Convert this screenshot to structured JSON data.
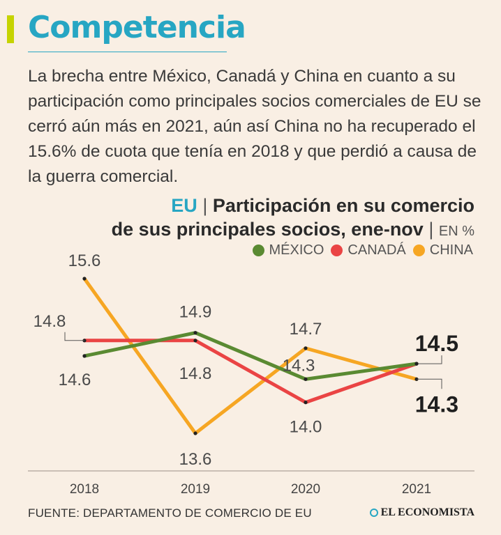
{
  "header": {
    "title": "Competencia",
    "intro": "La brecha entre México, Canadá y China en cuanto a su participación como principales socios comerciales de EU se cerró aún más en 2021, aún así China no ha recuperado el 15.6% de cuota que tenía en 2018 y que perdió a causa de la guerra comercial."
  },
  "chart_title": {
    "country": "EU",
    "separator": "|",
    "line1": "Participación en su comercio",
    "line2": "de sus principales socios, ene-nov",
    "unit": "EN %"
  },
  "colors": {
    "background": "#f9efe4",
    "accent": "#27a6c3",
    "accent_bar": "#c6d300",
    "axis": "#9a8f86"
  },
  "chart_data": {
    "type": "line",
    "x": [
      "2018",
      "2019",
      "2020",
      "2021"
    ],
    "series": [
      {
        "name": "MÉXICO",
        "color": "#5a8a32",
        "values": [
          14.6,
          14.9,
          14.3,
          14.5
        ]
      },
      {
        "name": "CANADÁ",
        "color": "#ea4444",
        "values": [
          14.8,
          14.8,
          14.0,
          14.5
        ]
      },
      {
        "name": "CHINA",
        "color": "#f6a623",
        "values": [
          15.6,
          13.6,
          14.7,
          14.3
        ]
      }
    ],
    "ylim": [
      13.3,
      15.9
    ],
    "legend_position": "top-right",
    "grid": false
  },
  "footer": {
    "source": "FUENTE: DEPARTAMENTO DE COMERCIO DE EU",
    "brand": "EL ECONOMISTA"
  }
}
